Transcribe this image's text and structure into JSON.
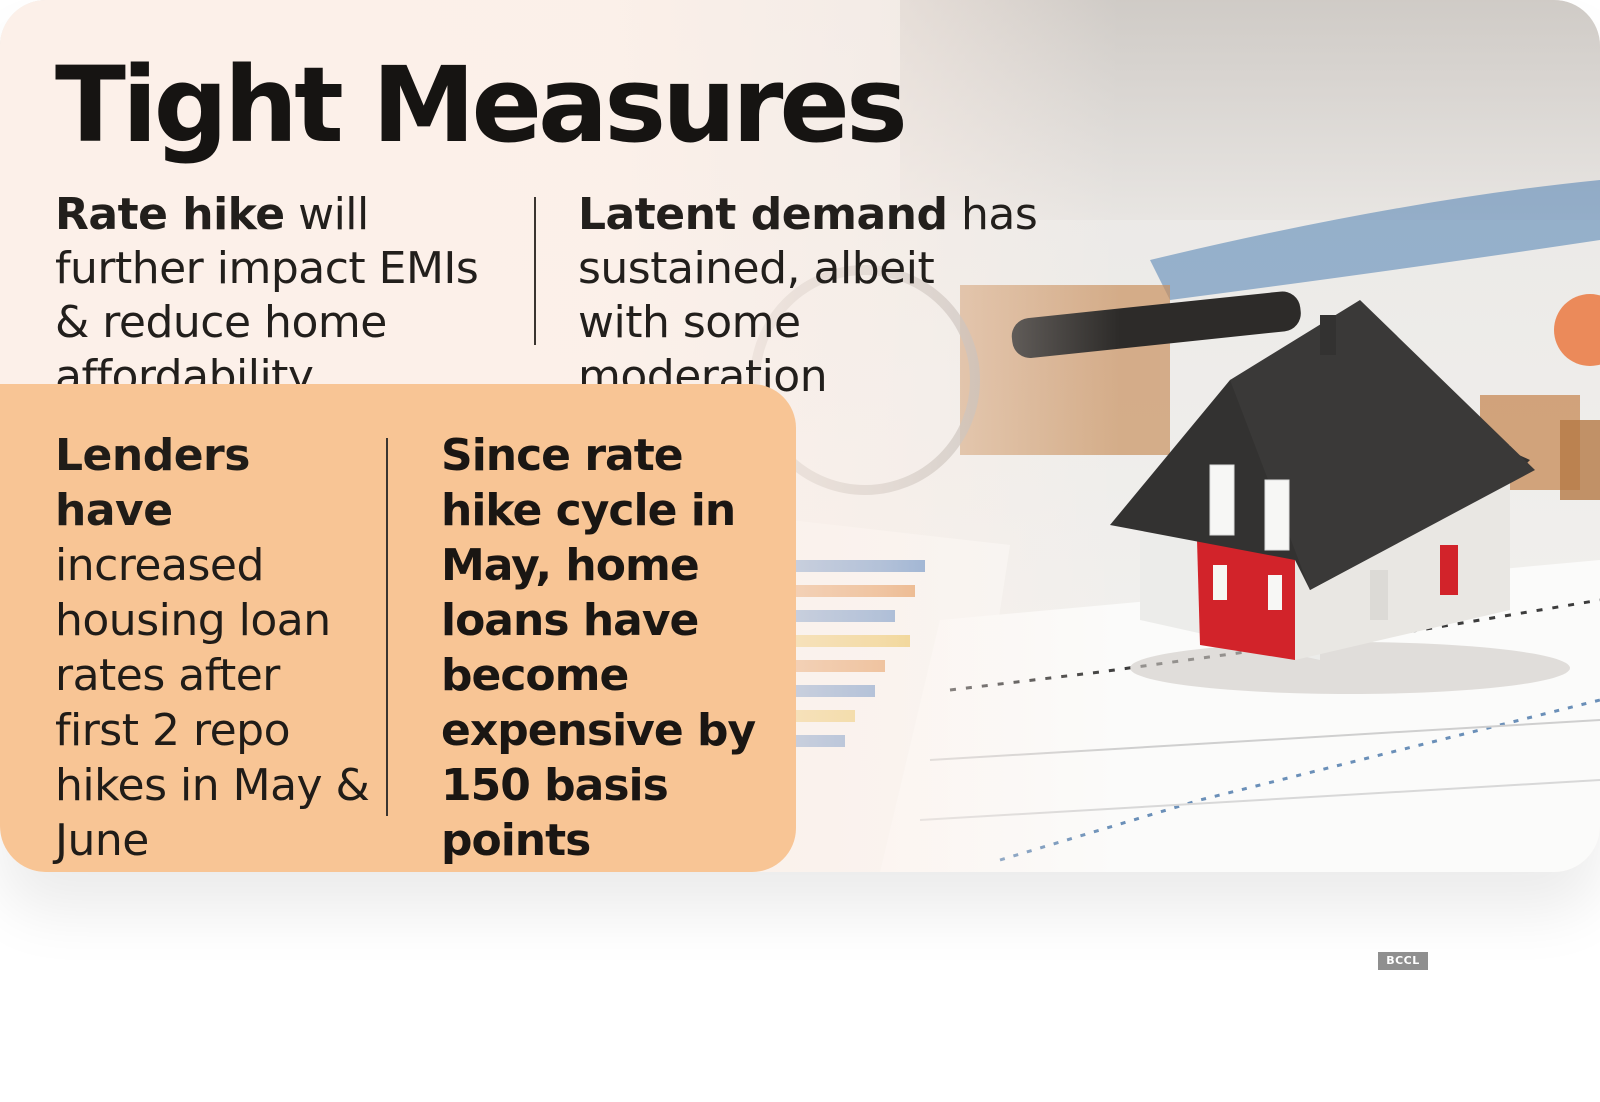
{
  "title": "Tight Measures",
  "top_left": {
    "bold": "Rate hike",
    "rest": " will further impact EMIs & reduce home affordability"
  },
  "top_right": {
    "bold": "Latent demand",
    "rest": " has sustained, albeit with some moderation"
  },
  "panel_left": {
    "bold": "Lenders have",
    "rest": " increased housing loan rates after first 2 repo hikes in May & June"
  },
  "panel_right": {
    "text": "Since rate hike cycle in May, home loans have become expensive by 150 basis points"
  },
  "credit": "BCCL",
  "colors": {
    "background": "#fbf0e9",
    "panel": "#f8c595",
    "text": "#1d1a17",
    "house_wall": "#d2232a",
    "house_roof": "#2f2f2f"
  },
  "photo": {
    "subject": "model house on financial charts with magnifying glass",
    "icons": [
      "house-model",
      "magnifying-glass",
      "bar-chart-paper",
      "line-chart-paper"
    ]
  }
}
